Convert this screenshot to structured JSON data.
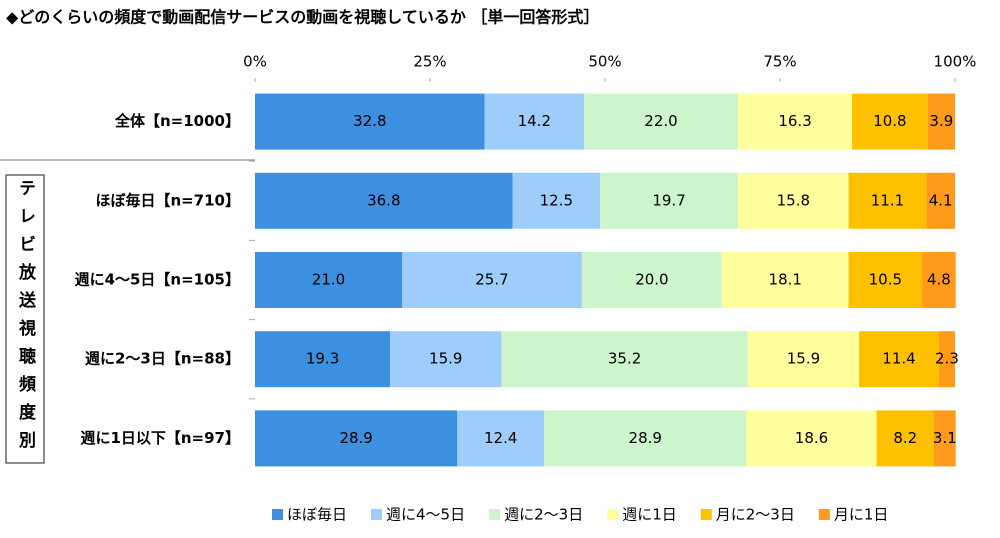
{
  "chart_data": {
    "type": "stacked-bar-horizontal",
    "title": "◆どのくらいの頻度で動画配信サービスの動画を視聴しているか ［単一回答形式］",
    "group_label": "テレビ放送視聴頻度別",
    "categories": [
      "全体【n=1000】",
      "ほぼ毎日【n=710】",
      "週に4～5日【n=105】",
      "週に2～3日【n=88】",
      "週に1日以下【n=97】"
    ],
    "xlim": [
      0,
      100
    ],
    "xticks": [
      {
        "value": 0,
        "label": "0%"
      },
      {
        "value": 25,
        "label": "25%"
      },
      {
        "value": 50,
        "label": "50%"
      },
      {
        "value": 75,
        "label": "75%"
      },
      {
        "value": 100,
        "label": "100%"
      }
    ],
    "legend": "bottom",
    "series": [
      {
        "name": "ほぼ毎日",
        "color": "#3d8fe0",
        "values": [
          32.8,
          36.8,
          21.0,
          19.3,
          28.9
        ],
        "value_labels": [
          "32.8",
          "36.8",
          "21.0",
          "19.3",
          "28.9"
        ]
      },
      {
        "name": "週に4～5日",
        "color": "#9fcdfb",
        "values": [
          14.2,
          12.5,
          25.7,
          15.9,
          12.4
        ],
        "value_labels": [
          "14.2",
          "12.5",
          "25.7",
          "15.9",
          "12.4"
        ]
      },
      {
        "name": "週に2～3日",
        "color": "#ccf5cc",
        "values": [
          22.0,
          19.7,
          20.0,
          35.2,
          28.9
        ],
        "value_labels": [
          "22.0",
          "19.7",
          "20.0",
          "35.2",
          "28.9"
        ]
      },
      {
        "name": "週に1日",
        "color": "#ffff9e",
        "values": [
          16.3,
          15.8,
          18.1,
          15.9,
          18.6
        ],
        "value_labels": [
          "16.3",
          "15.8",
          "18.1",
          "15.9",
          "18.6"
        ]
      },
      {
        "name": "月に2～3日",
        "color": "#ffc000",
        "values": [
          10.8,
          11.1,
          10.5,
          11.4,
          8.2
        ],
        "value_labels": [
          "10.8",
          "11.1",
          "10.5",
          "11.4",
          "8.2"
        ]
      },
      {
        "name": "月に1日",
        "color": "#ff9a1a",
        "values": [
          3.9,
          4.1,
          4.8,
          2.3,
          3.1
        ],
        "value_labels": [
          "3.9",
          "4.1",
          "4.8",
          "2.3",
          "3.1"
        ]
      }
    ]
  }
}
